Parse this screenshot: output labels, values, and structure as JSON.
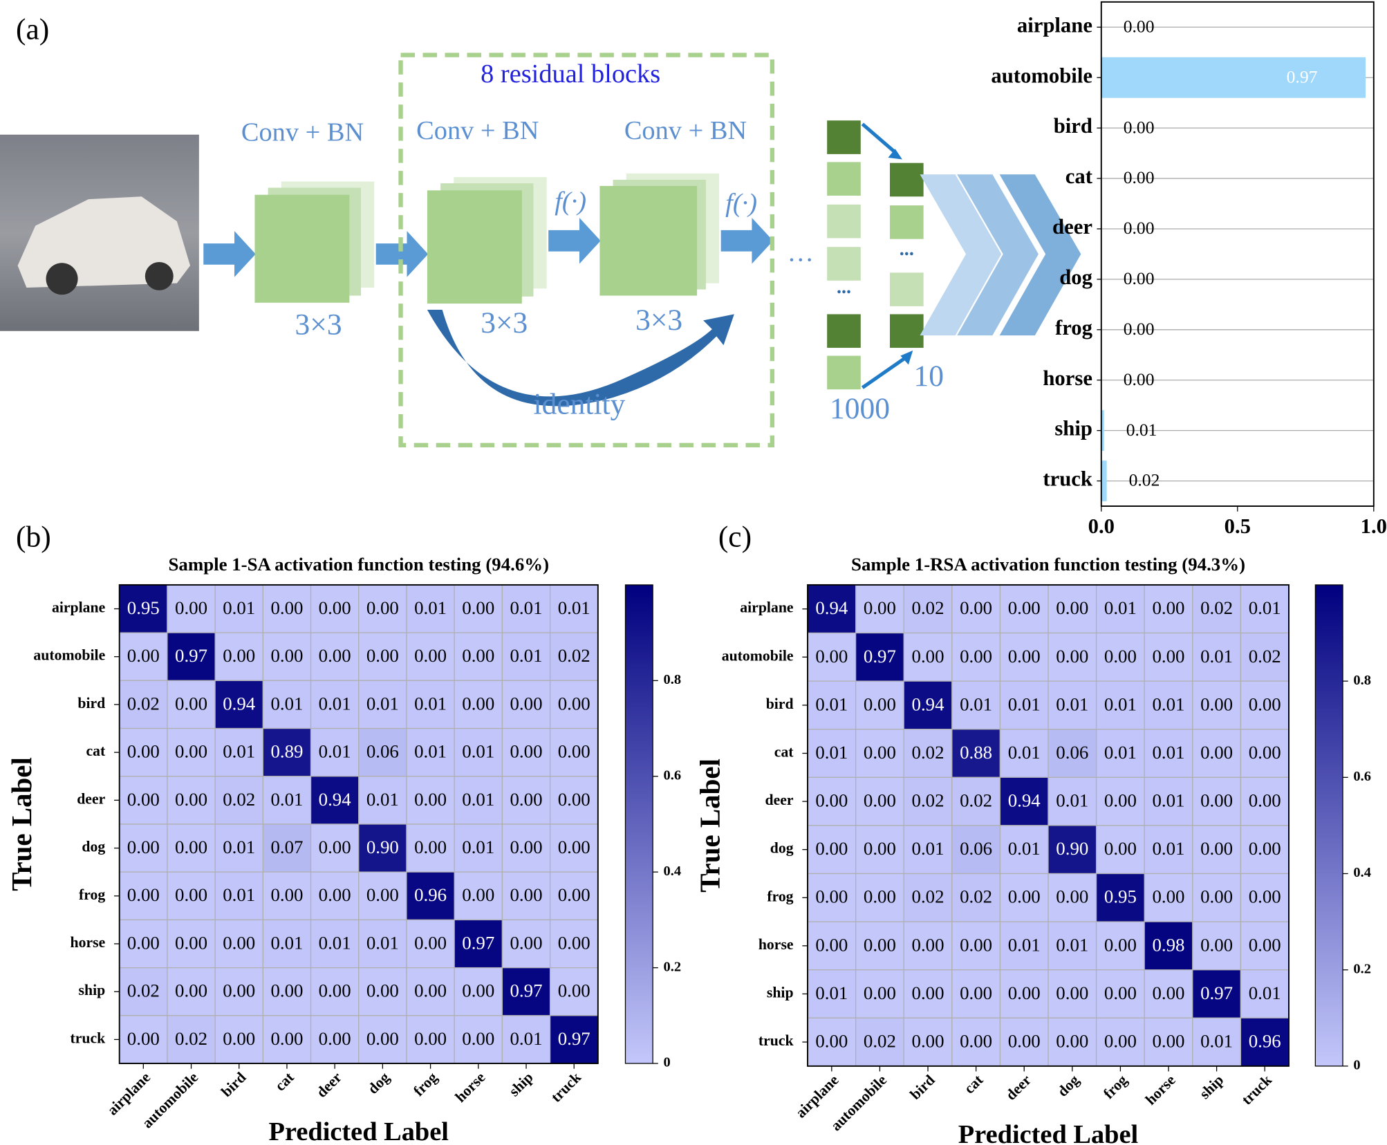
{
  "panel_labels": [
    "(a)",
    "(b)",
    "(c)"
  ],
  "diagram": {
    "group_label": "8 residual blocks",
    "layer_labels": [
      "Conv + BN",
      "Conv + BN",
      "Conv + BN"
    ],
    "kernel_labels": [
      "3×3",
      "3×3",
      "3×3"
    ],
    "activation_labels": [
      "f(·)",
      "f(·)"
    ],
    "skip_label": "identity",
    "ellipses": [
      "…",
      "...",
      "..."
    ],
    "vector_sizes": [
      1000,
      10
    ]
  },
  "chart_data": [
    {
      "type": "barh",
      "categories": [
        "airplane",
        "automobile",
        "bird",
        "cat",
        "deer",
        "dog",
        "frog",
        "horse",
        "ship",
        "truck"
      ],
      "values": [
        0.0,
        0.97,
        0.0,
        0.0,
        0.0,
        0.0,
        0.0,
        0.0,
        0.01,
        0.02
      ],
      "value_labels": [
        "0.00",
        "0.97",
        "0.00",
        "0.00",
        "0.00",
        "0.00",
        "0.00",
        "0.00",
        "0.01",
        "0.02"
      ],
      "xlim": [
        0,
        1
      ],
      "xticks": [
        {
          "value": 0,
          "label": "0.0"
        },
        {
          "value": 0.5,
          "label": "0.5"
        },
        {
          "value": 1,
          "label": "1.0"
        }
      ],
      "color": "#9fd8fb",
      "grid": true
    },
    {
      "type": "heatmap",
      "title": "Sample 1-SA activation function testing (94.6%)",
      "xlabel": "Predicted Label",
      "ylabel": "True Label",
      "categories": [
        "airplane",
        "automobile",
        "bird",
        "cat",
        "deer",
        "dog",
        "frog",
        "horse",
        "ship",
        "truck"
      ],
      "values": [
        [
          0.95,
          0.0,
          0.01,
          0.0,
          0.0,
          0.0,
          0.01,
          0.0,
          0.01,
          0.01
        ],
        [
          0.0,
          0.97,
          0.0,
          0.0,
          0.0,
          0.0,
          0.0,
          0.0,
          0.01,
          0.02
        ],
        [
          0.02,
          0.0,
          0.94,
          0.01,
          0.01,
          0.01,
          0.01,
          0.0,
          0.0,
          0.0
        ],
        [
          0.0,
          0.0,
          0.01,
          0.89,
          0.01,
          0.06,
          0.01,
          0.01,
          0.0,
          0.0
        ],
        [
          0.0,
          0.0,
          0.02,
          0.01,
          0.94,
          0.01,
          0.0,
          0.01,
          0.0,
          0.0
        ],
        [
          0.0,
          0.0,
          0.01,
          0.07,
          0.0,
          0.9,
          0.0,
          0.01,
          0.0,
          0.0
        ],
        [
          0.0,
          0.0,
          0.01,
          0.0,
          0.0,
          0.0,
          0.96,
          0.0,
          0.0,
          0.0
        ],
        [
          0.0,
          0.0,
          0.0,
          0.01,
          0.01,
          0.01,
          0.0,
          0.97,
          0.0,
          0.0
        ],
        [
          0.02,
          0.0,
          0.0,
          0.0,
          0.0,
          0.0,
          0.0,
          0.0,
          0.97,
          0.0
        ],
        [
          0.0,
          0.02,
          0.0,
          0.0,
          0.0,
          0.0,
          0.0,
          0.0,
          0.01,
          0.97
        ]
      ],
      "value_labels": [
        [
          "0.95",
          "0.00",
          "0.01",
          "0.00",
          "0.00",
          "0.00",
          "0.01",
          "0.00",
          "0.01",
          "0.01"
        ],
        [
          "0.00",
          "0.97",
          "0.00",
          "0.00",
          "0.00",
          "0.00",
          "0.00",
          "0.00",
          "0.01",
          "0.02"
        ],
        [
          "0.02",
          "0.00",
          "0.94",
          "0.01",
          "0.01",
          "0.01",
          "0.01",
          "0.00",
          "0.00",
          "0.00"
        ],
        [
          "0.00",
          "0.00",
          "0.01",
          "0.89",
          "0.01",
          "0.06",
          "0.01",
          "0.01",
          "0.00",
          "0.00"
        ],
        [
          "0.00",
          "0.00",
          "0.02",
          "0.01",
          "0.94",
          "0.01",
          "0.00",
          "0.01",
          "0.00",
          "0.00"
        ],
        [
          "0.00",
          "0.00",
          "0.01",
          "0.07",
          "0.00",
          "0.90",
          "0.00",
          "0.01",
          "0.00",
          "0.00"
        ],
        [
          "0.00",
          "0.00",
          "0.01",
          "0.00",
          "0.00",
          "0.00",
          "0.96",
          "0.00",
          "0.00",
          "0.00"
        ],
        [
          "0.00",
          "0.00",
          "0.00",
          "0.01",
          "0.01",
          "0.01",
          "0.00",
          "0.97",
          "0.00",
          "0.00"
        ],
        [
          "0.02",
          "0.00",
          "0.00",
          "0.00",
          "0.00",
          "0.00",
          "0.00",
          "0.00",
          "0.97",
          "0.00"
        ],
        [
          "0.00",
          "0.02",
          "0.00",
          "0.00",
          "0.00",
          "0.00",
          "0.00",
          "0.00",
          "0.01",
          "0.97"
        ]
      ],
      "clim": [
        0,
        1
      ],
      "cticks": [
        0,
        0.2,
        0.4,
        0.6,
        0.8
      ],
      "colormap": [
        "#c3c7fa",
        "#00007f"
      ]
    },
    {
      "type": "heatmap",
      "title": "Sample 1-RSA activation function testing (94.3%)",
      "xlabel": "Predicted Label",
      "ylabel": "True Label",
      "categories": [
        "airplane",
        "automobile",
        "bird",
        "cat",
        "deer",
        "dog",
        "frog",
        "horse",
        "ship",
        "truck"
      ],
      "values": [
        [
          0.94,
          0.0,
          0.02,
          0.0,
          0.0,
          0.0,
          0.01,
          0.0,
          0.02,
          0.01
        ],
        [
          0.0,
          0.97,
          0.0,
          0.0,
          0.0,
          0.0,
          0.0,
          0.0,
          0.01,
          0.02
        ],
        [
          0.01,
          0.0,
          0.94,
          0.01,
          0.01,
          0.01,
          0.01,
          0.01,
          0.0,
          0.0
        ],
        [
          0.01,
          0.0,
          0.02,
          0.88,
          0.01,
          0.06,
          0.01,
          0.01,
          0.0,
          0.0
        ],
        [
          0.0,
          0.0,
          0.02,
          0.02,
          0.94,
          0.01,
          0.0,
          0.01,
          0.0,
          0.0
        ],
        [
          0.0,
          0.0,
          0.01,
          0.06,
          0.01,
          0.9,
          0.0,
          0.01,
          0.0,
          0.0
        ],
        [
          0.0,
          0.0,
          0.02,
          0.02,
          0.0,
          0.0,
          0.95,
          0.0,
          0.0,
          0.0
        ],
        [
          0.0,
          0.0,
          0.0,
          0.0,
          0.01,
          0.01,
          0.0,
          0.98,
          0.0,
          0.0
        ],
        [
          0.01,
          0.0,
          0.0,
          0.0,
          0.0,
          0.0,
          0.0,
          0.0,
          0.97,
          0.01
        ],
        [
          0.0,
          0.02,
          0.0,
          0.0,
          0.0,
          0.0,
          0.0,
          0.0,
          0.01,
          0.96
        ]
      ],
      "value_labels": [
        [
          "0.94",
          "0.00",
          "0.02",
          "0.00",
          "0.00",
          "0.00",
          "0.01",
          "0.00",
          "0.02",
          "0.01"
        ],
        [
          "0.00",
          "0.97",
          "0.00",
          "0.00",
          "0.00",
          "0.00",
          "0.00",
          "0.00",
          "0.01",
          "0.02"
        ],
        [
          "0.01",
          "0.00",
          "0.94",
          "0.01",
          "0.01",
          "0.01",
          "0.01",
          "0.01",
          "0.00",
          "0.00"
        ],
        [
          "0.01",
          "0.00",
          "0.02",
          "0.88",
          "0.01",
          "0.06",
          "0.01",
          "0.01",
          "0.00",
          "0.00"
        ],
        [
          "0.00",
          "0.00",
          "0.02",
          "0.02",
          "0.94",
          "0.01",
          "0.00",
          "0.01",
          "0.00",
          "0.00"
        ],
        [
          "0.00",
          "0.00",
          "0.01",
          "0.06",
          "0.01",
          "0.90",
          "0.00",
          "0.01",
          "0.00",
          "0.00"
        ],
        [
          "0.00",
          "0.00",
          "0.02",
          "0.02",
          "0.00",
          "0.00",
          "0.95",
          "0.00",
          "0.00",
          "0.00"
        ],
        [
          "0.00",
          "0.00",
          "0.00",
          "0.00",
          "0.01",
          "0.01",
          "0.00",
          "0.98",
          "0.00",
          "0.00"
        ],
        [
          "0.01",
          "0.00",
          "0.00",
          "0.00",
          "0.00",
          "0.00",
          "0.00",
          "0.00",
          "0.97",
          "0.01"
        ],
        [
          "0.00",
          "0.02",
          "0.00",
          "0.00",
          "0.00",
          "0.00",
          "0.00",
          "0.00",
          "0.01",
          "0.96"
        ]
      ],
      "clim": [
        0,
        1
      ],
      "cticks": [
        0,
        0.2,
        0.4,
        0.6,
        0.8
      ],
      "colormap": [
        "#c3c7fa",
        "#00007f"
      ]
    }
  ]
}
